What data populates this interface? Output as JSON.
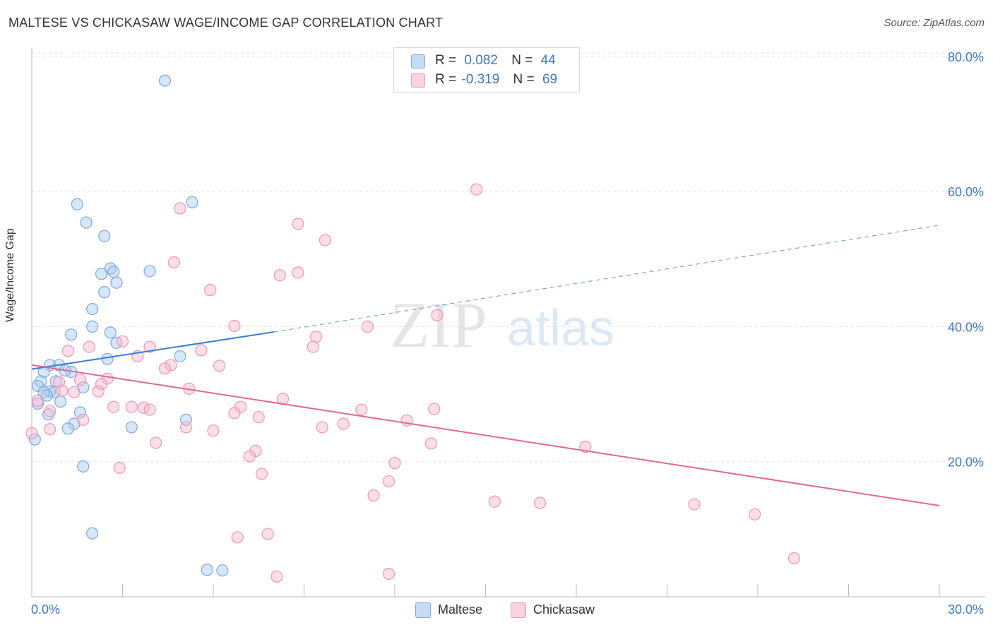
{
  "header": {
    "title": "MALTESE VS CHICKASAW WAGE/INCOME GAP CORRELATION CHART",
    "source": "Source: ZipAtlas.com"
  },
  "legend": {
    "r_label": "R =",
    "n_label": "N =",
    "maltese": {
      "r": "0.082",
      "n": "44"
    },
    "chickasaw": {
      "r": "-0.319",
      "n": "69"
    }
  },
  "watermark": {
    "zip": "ZIP",
    "atlas": "atlas"
  },
  "colors": {
    "maltese_fill": "#a9c9f0",
    "maltese_stroke": "#7aa8e0",
    "maltese_line": "#3a7bd5",
    "chickasaw_fill": "#f6b8cb",
    "chickasaw_stroke": "#ee94b2",
    "chickasaw_line": "#e06895",
    "tick_label": "#3b78c8",
    "grid": "#e3e3e3"
  },
  "chart_data": {
    "type": "scatter",
    "title": "MALTESE VS CHICKASAW WAGE/INCOME GAP CORRELATION CHART",
    "xlabel": "",
    "ylabel": "Wage/Income Gap",
    "xlim": [
      0,
      30
    ],
    "ylim": [
      0,
      80.5
    ],
    "x_tick_labels": [
      "0.0%",
      "30.0%"
    ],
    "y_ticks": [
      20,
      40,
      60,
      80
    ],
    "y_tick_labels": [
      "20.0%",
      "40.0%",
      "60.0%",
      "80.0%"
    ],
    "grid": "horizontal dashed",
    "legend_position": "top-center",
    "series": [
      {
        "name": "Maltese",
        "points": [
          [
            4.4,
            76.4
          ],
          [
            1.5,
            58.1
          ],
          [
            5.3,
            58.4
          ],
          [
            1.8,
            55.4
          ],
          [
            2.4,
            53.4
          ],
          [
            2.6,
            48.6
          ],
          [
            2.3,
            47.8
          ],
          [
            2.7,
            48.1
          ],
          [
            3.9,
            48.2
          ],
          [
            2.8,
            46.5
          ],
          [
            2.4,
            45.1
          ],
          [
            2.0,
            42.6
          ],
          [
            2.0,
            40.0
          ],
          [
            1.3,
            38.8
          ],
          [
            2.6,
            39.1
          ],
          [
            2.8,
            37.6
          ],
          [
            0.6,
            34.3
          ],
          [
            2.5,
            35.2
          ],
          [
            4.9,
            35.6
          ],
          [
            0.9,
            34.3
          ],
          [
            1.3,
            33.3
          ],
          [
            0.4,
            33.3
          ],
          [
            0.3,
            31.9
          ],
          [
            0.8,
            31.9
          ],
          [
            0.2,
            31.2
          ],
          [
            1.7,
            31.0
          ],
          [
            0.6,
            30.4
          ],
          [
            0.4,
            30.3
          ],
          [
            0.75,
            30.3
          ],
          [
            0.95,
            28.9
          ],
          [
            0.2,
            28.6
          ],
          [
            1.6,
            27.3
          ],
          [
            0.55,
            27.0
          ],
          [
            1.4,
            25.6
          ],
          [
            1.2,
            24.9
          ],
          [
            3.3,
            25.1
          ],
          [
            5.1,
            26.2
          ],
          [
            1.7,
            19.3
          ],
          [
            0.1,
            23.3
          ],
          [
            2.0,
            9.4
          ],
          [
            5.8,
            4.0
          ],
          [
            6.3,
            3.9
          ],
          [
            0.5,
            29.8
          ],
          [
            1.1,
            33.5
          ]
        ]
      },
      {
        "name": "Chickasaw",
        "points": [
          [
            14.7,
            60.3
          ],
          [
            4.9,
            57.5
          ],
          [
            8.8,
            55.2
          ],
          [
            9.7,
            52.8
          ],
          [
            4.7,
            49.5
          ],
          [
            8.2,
            47.6
          ],
          [
            8.8,
            48.0
          ],
          [
            5.9,
            45.4
          ],
          [
            13.4,
            41.7
          ],
          [
            6.7,
            40.1
          ],
          [
            11.1,
            40.0
          ],
          [
            9.4,
            38.5
          ],
          [
            3.0,
            37.8
          ],
          [
            9.3,
            37.0
          ],
          [
            3.9,
            37.0
          ],
          [
            1.9,
            37.0
          ],
          [
            5.6,
            36.5
          ],
          [
            1.2,
            36.4
          ],
          [
            3.5,
            35.6
          ],
          [
            4.6,
            34.3
          ],
          [
            4.4,
            33.8
          ],
          [
            6.2,
            34.2
          ],
          [
            2.5,
            32.3
          ],
          [
            1.6,
            32.1
          ],
          [
            0.9,
            31.8
          ],
          [
            2.3,
            31.5
          ],
          [
            5.2,
            30.8
          ],
          [
            2.2,
            30.4
          ],
          [
            1.4,
            30.3
          ],
          [
            0.2,
            29.0
          ],
          [
            8.3,
            29.3
          ],
          [
            0.6,
            27.5
          ],
          [
            2.7,
            28.1
          ],
          [
            3.3,
            28.1
          ],
          [
            3.7,
            28.0
          ],
          [
            3.9,
            27.7
          ],
          [
            6.9,
            28.1
          ],
          [
            6.7,
            27.2
          ],
          [
            10.9,
            27.7
          ],
          [
            13.3,
            27.8
          ],
          [
            7.5,
            26.6
          ],
          [
            1.7,
            26.2
          ],
          [
            12.4,
            26.1
          ],
          [
            10.3,
            25.6
          ],
          [
            9.6,
            25.1
          ],
          [
            5.1,
            25.1
          ],
          [
            6.0,
            24.6
          ],
          [
            4.1,
            22.8
          ],
          [
            13.2,
            22.7
          ],
          [
            18.3,
            22.2
          ],
          [
            7.4,
            21.6
          ],
          [
            7.2,
            20.8
          ],
          [
            12.0,
            19.8
          ],
          [
            2.9,
            19.1
          ],
          [
            7.6,
            18.2
          ],
          [
            11.8,
            17.1
          ],
          [
            11.3,
            15.0
          ],
          [
            15.3,
            14.1
          ],
          [
            16.8,
            13.9
          ],
          [
            21.9,
            13.7
          ],
          [
            23.9,
            12.2
          ],
          [
            6.8,
            8.8
          ],
          [
            7.8,
            9.3
          ],
          [
            25.2,
            5.7
          ],
          [
            8.1,
            3.0
          ],
          [
            11.8,
            3.4
          ],
          [
            0.0,
            24.2
          ],
          [
            0.6,
            24.8
          ],
          [
            1.0,
            30.5
          ]
        ]
      }
    ],
    "trend_lines": [
      {
        "series": "Maltese",
        "solid": [
          [
            0,
            33.7
          ],
          [
            8.0,
            39.2
          ]
        ],
        "dashed": [
          [
            8.0,
            39.2
          ],
          [
            30,
            55.0
          ]
        ]
      },
      {
        "series": "Chickasaw",
        "solid": [
          [
            0,
            34.3
          ],
          [
            30,
            13.5
          ]
        ]
      }
    ]
  }
}
